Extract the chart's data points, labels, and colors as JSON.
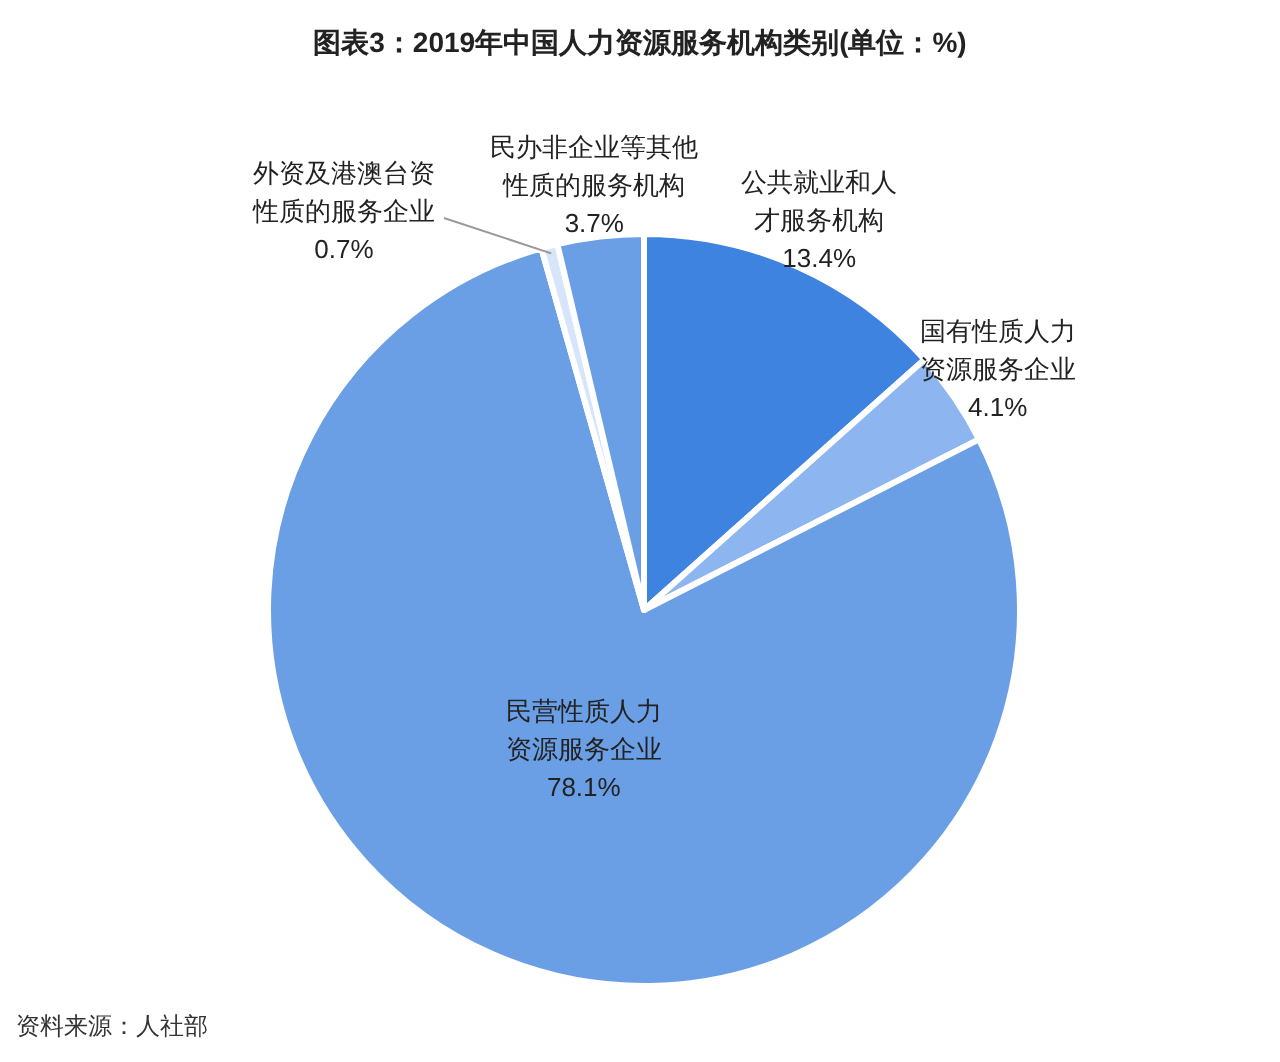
{
  "chart_data": {
    "type": "pie",
    "title": "图表3：2019年中国人力资源服务机构类别(单位：%)",
    "categories": [
      "公共就业和人才服务机构",
      "国有性质人力资源服务企业",
      "民营性质人力资源服务企业",
      "外资及港澳台资性质的服务企业",
      "民办非企业等其他性质的服务机构"
    ],
    "values": [
      13.4,
      4.1,
      78.1,
      0.7,
      3.7
    ],
    "colors": [
      "#3f83e0",
      "#8db6f0",
      "#6a9fe6",
      "#d6e5f9",
      "#6a9fe6"
    ],
    "value_labels": [
      "13.4%",
      "4.1%",
      "78.1%",
      "0.7%",
      "3.7%"
    ],
    "annotations": [
      "资料来源：人社部"
    ]
  }
}
